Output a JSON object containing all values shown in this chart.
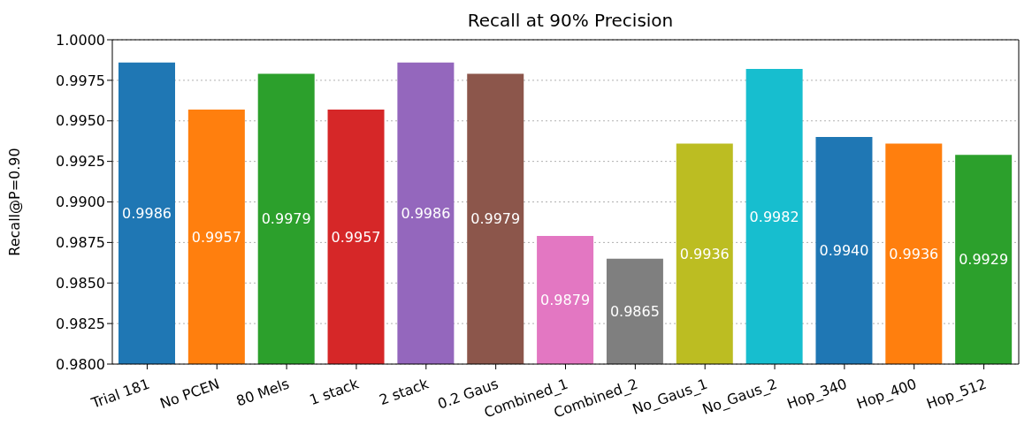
{
  "chart_data": {
    "type": "bar",
    "title": "Recall at 90% Precision",
    "ylabel": "Recall@P=0.90",
    "categories": [
      "Trial 181",
      "No PCEN",
      "80 Mels",
      "1 stack",
      "2 stack",
      "0.2 Gaus",
      "Combined_1",
      "Combined_2",
      "No_Gaus_1",
      "No_Gaus_2",
      "Hop_340",
      "Hop_400",
      "Hop_512"
    ],
    "values": [
      0.9986,
      0.9957,
      0.9979,
      0.9957,
      0.9986,
      0.9979,
      0.9879,
      0.9865,
      0.9936,
      0.9982,
      0.994,
      0.9936,
      0.9929
    ],
    "value_labels": [
      "0.9986",
      "0.9957",
      "0.9979",
      "0.9957",
      "0.9986",
      "0.9979",
      "0.9879",
      "0.9865",
      "0.9936",
      "0.9982",
      "0.9940",
      "0.9936",
      "0.9929"
    ],
    "colors": [
      "#1f77b4",
      "#ff7f0e",
      "#2ca02c",
      "#d62728",
      "#9467bd",
      "#8c564b",
      "#e377c2",
      "#7f7f7f",
      "#bcbd22",
      "#17becf",
      "#1f77b4",
      "#ff7f0e",
      "#2ca02c"
    ],
    "ylim": [
      0.98,
      1.0
    ],
    "yticks": [
      {
        "value": 0.98,
        "label": "0.9800"
      },
      {
        "value": 0.9825,
        "label": "0.9825"
      },
      {
        "value": 0.985,
        "label": "0.9850"
      },
      {
        "value": 0.9875,
        "label": "0.9875"
      },
      {
        "value": 0.99,
        "label": "0.9900"
      },
      {
        "value": 0.9925,
        "label": "0.9925"
      },
      {
        "value": 0.995,
        "label": "0.9950"
      },
      {
        "value": 0.9975,
        "label": "0.9975"
      },
      {
        "value": 1.0,
        "label": "1.0000"
      }
    ],
    "grid": "y"
  }
}
